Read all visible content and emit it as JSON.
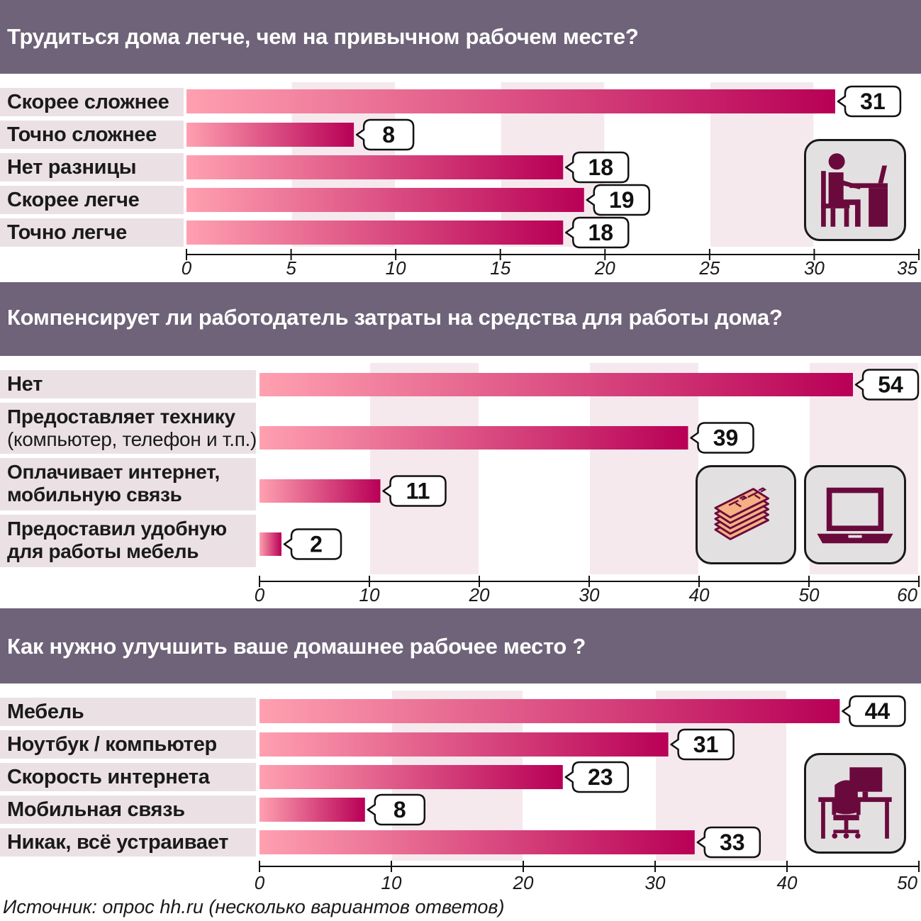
{
  "colors": {
    "title_band": "#6e6378",
    "label_band": "#ebe1e5",
    "bar_start": "#ffa0b0",
    "bar_end": "#b80056",
    "icon": "#6a0a3c"
  },
  "source": "Источник: опрос hh.ru (несколько вариантов ответов)",
  "chart_data": [
    {
      "type": "bar",
      "orientation": "horizontal",
      "title": "Трудиться дома легче, чем на привычном рабочем месте?",
      "categories": [
        "Скорее сложнее",
        "Точно сложнее",
        "Нет разницы",
        "Скорее легче",
        "Точно легче"
      ],
      "values": [
        31,
        8,
        18,
        19,
        18
      ],
      "ticks": [
        "0",
        "5",
        "10",
        "15",
        "20",
        "25",
        "30",
        "35"
      ],
      "xlim": [
        0,
        35
      ],
      "grid": "alternating column bands",
      "icon": "person-at-desk-icon"
    },
    {
      "type": "bar",
      "orientation": "horizontal",
      "title": "Компенсирует ли работодатель затраты на средства для работы дома?",
      "categories": [
        [
          "Нет"
        ],
        [
          "Предоставляет технику",
          "(компьютер, телефон и т.п.)"
        ],
        [
          "Оплачивает интернет,",
          "мобильную связь"
        ],
        [
          "Предоставил удобную",
          "для работы мебель"
        ]
      ],
      "values": [
        54,
        39,
        11,
        2
      ],
      "ticks": [
        "0",
        "10",
        "20",
        "30",
        "40",
        "50",
        "60"
      ],
      "xlim": [
        0,
        60
      ],
      "grid": "alternating column bands",
      "icons": [
        "money-stack-icon",
        "laptop-icon"
      ]
    },
    {
      "type": "bar",
      "orientation": "horizontal",
      "title": "Как нужно улучшить ваше домашнее рабочее место ?",
      "categories": [
        "Мебель",
        "Ноутбук / компьютер",
        "Скорость интернета",
        "Мобильная связь",
        "Никак, всё устраивает"
      ],
      "values": [
        44,
        31,
        23,
        8,
        33
      ],
      "ticks": [
        "0",
        "10",
        "20",
        "30",
        "40",
        "50"
      ],
      "xlim": [
        0,
        50
      ],
      "grid": "alternating column bands",
      "icon": "office-chair-desk-icon"
    }
  ]
}
